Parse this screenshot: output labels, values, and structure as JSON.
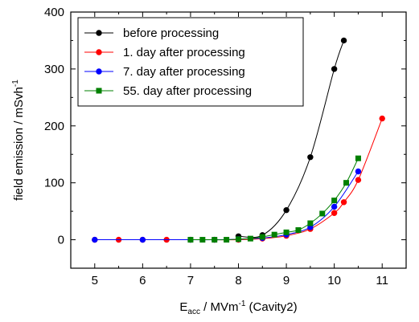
{
  "chart_data": {
    "type": "line",
    "title": "",
    "xlabel": {
      "main": "E",
      "subscript": "acc",
      "rest": " / MVm",
      "superscript": "-1",
      "suffix": " (Cavity2)"
    },
    "ylabel": {
      "main": "field emission / mSvh",
      "superscript": "-1"
    },
    "xlim": [
      4.5,
      11.5
    ],
    "ylim": [
      -50,
      400
    ],
    "xticks": [
      5,
      6,
      7,
      8,
      9,
      10,
      11
    ],
    "yticks": [
      0,
      100,
      200,
      300,
      400
    ],
    "xtick_labels": [
      "5",
      "6",
      "7",
      "8",
      "9",
      "10",
      "11"
    ],
    "ytick_labels": [
      "0",
      "100",
      "200",
      "300",
      "400"
    ],
    "grid": false,
    "legend_position": "top-left",
    "series": [
      {
        "name": "before processing",
        "color": "#000000",
        "marker": "circle",
        "x": [
          8.0,
          8.5,
          9.0,
          9.5,
          10.0,
          10.2
        ],
        "y": [
          6,
          8,
          52,
          145,
          300,
          350
        ]
      },
      {
        "name": "1. day after processing",
        "color": "#ff0000",
        "marker": "circle",
        "x": [
          5.0,
          5.5,
          6.0,
          6.5,
          7.0,
          7.5,
          8.0,
          8.5,
          9.0,
          9.5,
          10.0,
          10.2,
          10.5,
          11.0
        ],
        "y": [
          0,
          0,
          0,
          0,
          0,
          0,
          0,
          2,
          7,
          19,
          47,
          66,
          105,
          213
        ]
      },
      {
        "name": "7. day after processing",
        "color": "#0000ff",
        "marker": "circle",
        "x": [
          5.0,
          6.0,
          7.0,
          7.5,
          8.0,
          8.5,
          9.0,
          9.5,
          10.0,
          10.5
        ],
        "y": [
          0,
          0,
          0,
          0,
          1,
          3,
          9,
          22,
          58,
          120
        ]
      },
      {
        "name": "55. day after processing",
        "color": "#008000",
        "marker": "square",
        "x": [
          7.0,
          7.25,
          7.5,
          7.75,
          8.0,
          8.25,
          8.5,
          8.75,
          9.0,
          9.25,
          9.5,
          9.75,
          10.0,
          10.25,
          10.5
        ],
        "y": [
          0,
          0,
          0,
          0,
          1,
          2,
          5,
          9,
          13,
          17,
          29,
          46,
          69,
          100,
          143
        ]
      }
    ]
  }
}
